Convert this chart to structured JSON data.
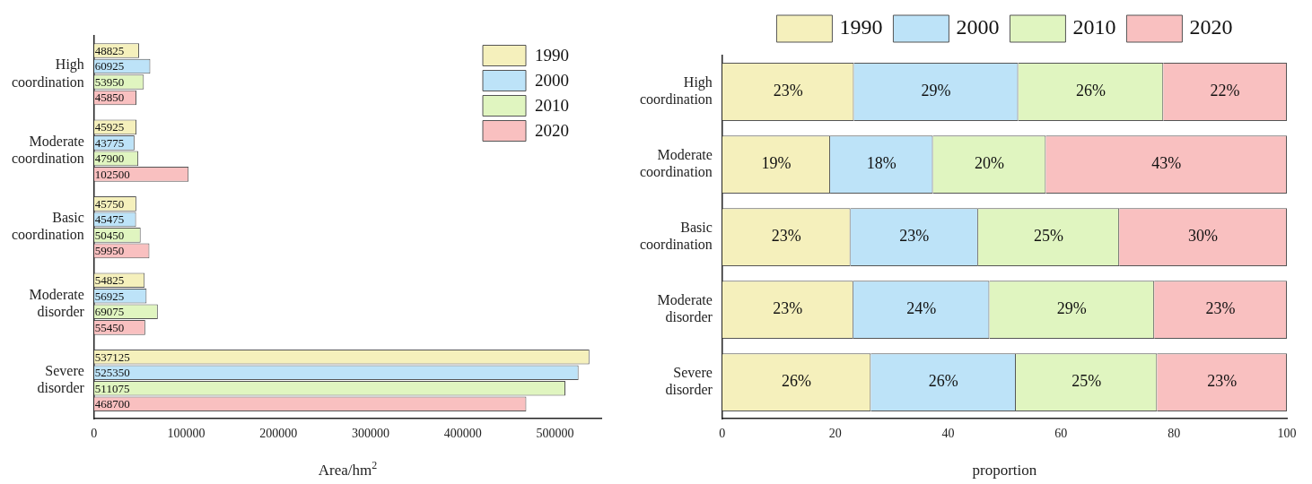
{
  "chart_data": [
    {
      "type": "bar",
      "orientation": "horizontal",
      "xlabel": "Area/hm$^{2}$",
      "categories": [
        "High coordination",
        "Moderate coordination",
        "Basic coordination",
        "Moderate disorder",
        "Severe disorder"
      ],
      "series": [
        {
          "name": "1990",
          "color": "#f5f0bc",
          "values": [
            48825,
            45925,
            45750,
            54825,
            537125
          ]
        },
        {
          "name": "2000",
          "color": "#bde3f8",
          "values": [
            60925,
            43775,
            45475,
            56925,
            525350
          ]
        },
        {
          "name": "2010",
          "color": "#e0f5c0",
          "values": [
            53950,
            47900,
            50450,
            69075,
            511075
          ]
        },
        {
          "name": "2020",
          "color": "#f9c0c0",
          "values": [
            45850,
            102500,
            59950,
            55450,
            468700
          ]
        }
      ],
      "xlim": [
        0,
        550000
      ],
      "xticks": [
        0,
        100000,
        200000,
        300000,
        400000,
        500000
      ],
      "data_labels": true,
      "legend": "top right",
      "grid": false
    },
    {
      "type": "bar",
      "orientation": "horizontal",
      "stacked": true,
      "xlabel": "proportion",
      "categories": [
        "High coordination",
        "Moderate coordination",
        "Basic coordination",
        "Moderate disorder",
        "Severe disorder"
      ],
      "series": [
        {
          "name": "1990",
          "color": "#f5f0bc",
          "values": [
            23.3,
            19.1,
            22.7,
            23.2,
            26.3
          ],
          "value_labels": [
            "23%",
            "19%",
            "23%",
            "23%",
            "26%"
          ]
        },
        {
          "name": "2000",
          "color": "#bde3f8",
          "values": [
            29.1,
            18.2,
            22.6,
            24.1,
            25.7
          ],
          "value_labels": [
            "29%",
            "18%",
            "23%",
            "24%",
            "26%"
          ]
        },
        {
          "name": "2010",
          "color": "#e0f5c0",
          "values": [
            25.7,
            20.0,
            25.0,
            29.2,
            25.0
          ],
          "value_labels": [
            "26%",
            "20%",
            "25%",
            "29%",
            "25%"
          ]
        },
        {
          "name": "2020",
          "color": "#f9c0c0",
          "values": [
            21.9,
            42.7,
            29.7,
            23.5,
            23.0
          ],
          "value_labels": [
            "22%",
            "43%",
            "30%",
            "23%",
            "23%"
          ]
        }
      ],
      "xlim": [
        0,
        100
      ],
      "xticks": [
        0,
        20,
        40,
        60,
        80,
        100
      ],
      "legend": "top",
      "grid": false
    }
  ]
}
